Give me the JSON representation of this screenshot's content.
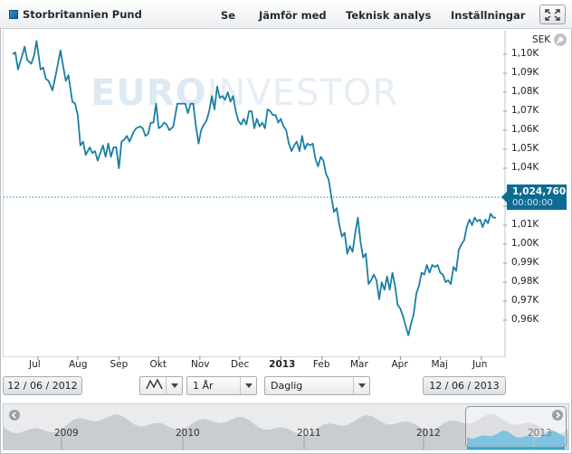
{
  "toolbar": {
    "title": "Storbritannien Pund",
    "menu": [
      "Se",
      "Jämför med",
      "Teknisk analys",
      "Inställningar"
    ]
  },
  "watermark": {
    "bold": "EURO",
    "light": "INVESTOR"
  },
  "chart": {
    "currency": "SEK",
    "current_price": "1,024,760",
    "current_time": "00:00:00",
    "colors": {
      "line": "#1a7fa3",
      "price_badge": "#0e6c93"
    }
  },
  "controls": {
    "start_date": "12 / 06 / 2012",
    "end_date": "12 / 06 / 2013",
    "period": "1 År",
    "interval": "Daglig"
  },
  "navigator": {
    "years": [
      "2009",
      "2010",
      "2011",
      "2012",
      "2013"
    ]
  },
  "chart_data": {
    "type": "line",
    "ylabel": "SEK",
    "ylim": [
      0.949,
      1.107
    ],
    "y_ticks": [
      "1,10K",
      "1,09K",
      "1,08K",
      "1,07K",
      "1,06K",
      "1,05K",
      "1,04K",
      "1,02K",
      "1,01K",
      "1,00K",
      "0,99K",
      "0,98K",
      "0,97K",
      "0,96K"
    ],
    "y_tick_values": [
      1.1,
      1.09,
      1.08,
      1.07,
      1.06,
      1.05,
      1.04,
      1.02,
      1.01,
      1.0,
      0.99,
      0.98,
      0.97,
      0.96
    ],
    "x_ticks": [
      "Jul",
      "Aug",
      "Sep",
      "Okt",
      "Nov",
      "Dec",
      "2013",
      "Feb",
      "Mar",
      "Apr",
      "Maj",
      "Jun"
    ],
    "x_tick_days": [
      19,
      49,
      80,
      110,
      141,
      171,
      202,
      233,
      261,
      292,
      322,
      353
    ],
    "series": [
      {
        "day": [
          0,
          2,
          4,
          7,
          9,
          11,
          14,
          16,
          18,
          21,
          23,
          25,
          27,
          30,
          33,
          36,
          38,
          40,
          42,
          45,
          47,
          49,
          51,
          53,
          55,
          58,
          60,
          62,
          64,
          66,
          68,
          70,
          72,
          74,
          76,
          78,
          80,
          82,
          84,
          86,
          88,
          91,
          93,
          96,
          98,
          100,
          102,
          104,
          106,
          108,
          110,
          112,
          114,
          116,
          118,
          121,
          124,
          126,
          128,
          130,
          132,
          134,
          136,
          138,
          140,
          142,
          144,
          146,
          148,
          150,
          152,
          154,
          156,
          158,
          160,
          162,
          164,
          166,
          168,
          170,
          172,
          174,
          176,
          178,
          180,
          182,
          184,
          186,
          188,
          190,
          192,
          194,
          196,
          198,
          200,
          202,
          204,
          206,
          208,
          210,
          212,
          214,
          216,
          218,
          220,
          222,
          224,
          226,
          228,
          230,
          232,
          234,
          236,
          238,
          240,
          242,
          244,
          246,
          248,
          250,
          252,
          254,
          256,
          258,
          260,
          262,
          264,
          266,
          268,
          270,
          272,
          274,
          276,
          278,
          280,
          282,
          284,
          286,
          288,
          290,
          292,
          294,
          296,
          298,
          300,
          302,
          304,
          306,
          308,
          310,
          312,
          314,
          316,
          318,
          320,
          322,
          324,
          326,
          328,
          330,
          332,
          334,
          336,
          338,
          340,
          342,
          344,
          346,
          348,
          350,
          352,
          354,
          356,
          358,
          360,
          362,
          364
        ],
        "value": [
          1.1,
          1.101,
          1.092,
          1.099,
          1.104,
          1.097,
          1.095,
          1.099,
          1.107,
          1.092,
          1.093,
          1.087,
          1.086,
          1.081,
          1.091,
          1.102,
          1.094,
          1.086,
          1.089,
          1.075,
          1.074,
          1.068,
          1.052,
          1.054,
          1.047,
          1.051,
          1.048,
          1.049,
          1.044,
          1.048,
          1.052,
          1.046,
          1.053,
          1.046,
          1.051,
          1.051,
          1.04,
          1.054,
          1.055,
          1.057,
          1.054,
          1.059,
          1.061,
          1.062,
          1.061,
          1.057,
          1.058,
          1.064,
          1.064,
          1.074,
          1.061,
          1.062,
          1.064,
          1.063,
          1.06,
          1.062,
          1.074,
          1.074,
          1.074,
          1.074,
          1.069,
          1.074,
          1.074,
          1.062,
          1.053,
          1.06,
          1.063,
          1.065,
          1.07,
          1.078,
          1.071,
          1.083,
          1.077,
          1.078,
          1.076,
          1.08,
          1.075,
          1.078,
          1.07,
          1.065,
          1.063,
          1.066,
          1.063,
          1.07,
          1.07,
          1.061,
          1.066,
          1.062,
          1.064,
          1.061,
          1.071,
          1.07,
          1.068,
          1.068,
          1.064,
          1.066,
          1.062,
          1.06,
          1.053,
          1.049,
          1.052,
          1.054,
          1.049,
          1.057,
          1.05,
          1.053,
          1.052,
          1.053,
          1.045,
          1.041,
          1.046,
          1.044,
          1.037,
          1.034,
          1.025,
          1.017,
          1.019,
          1.01,
          1.004,
          1.006,
          0.995,
          0.999,
          0.996,
          1.006,
          1.014,
          1.001,
          0.993,
          0.995,
          0.979,
          0.981,
          0.984,
          0.981,
          0.971,
          0.98,
          0.976,
          0.983,
          0.976,
          0.985,
          0.978,
          0.968,
          0.966,
          0.962,
          0.957,
          0.952,
          0.958,
          0.963,
          0.974,
          0.978,
          0.985,
          0.984,
          0.989,
          0.985,
          0.989,
          0.988,
          0.989,
          0.985,
          0.984,
          0.98,
          0.981,
          0.979,
          0.988,
          0.986,
          0.997,
          1.0,
          1.002,
          1.009,
          1.013,
          1.01,
          1.014,
          1.012,
          1.013,
          1.009,
          1.013,
          1.011,
          1.016,
          1.014,
          1.014,
          1.003,
          1.004,
          1.006,
          1.003,
          1.008,
          1.004,
          1.009,
          1.021,
          1.024
        ]
      }
    ]
  }
}
